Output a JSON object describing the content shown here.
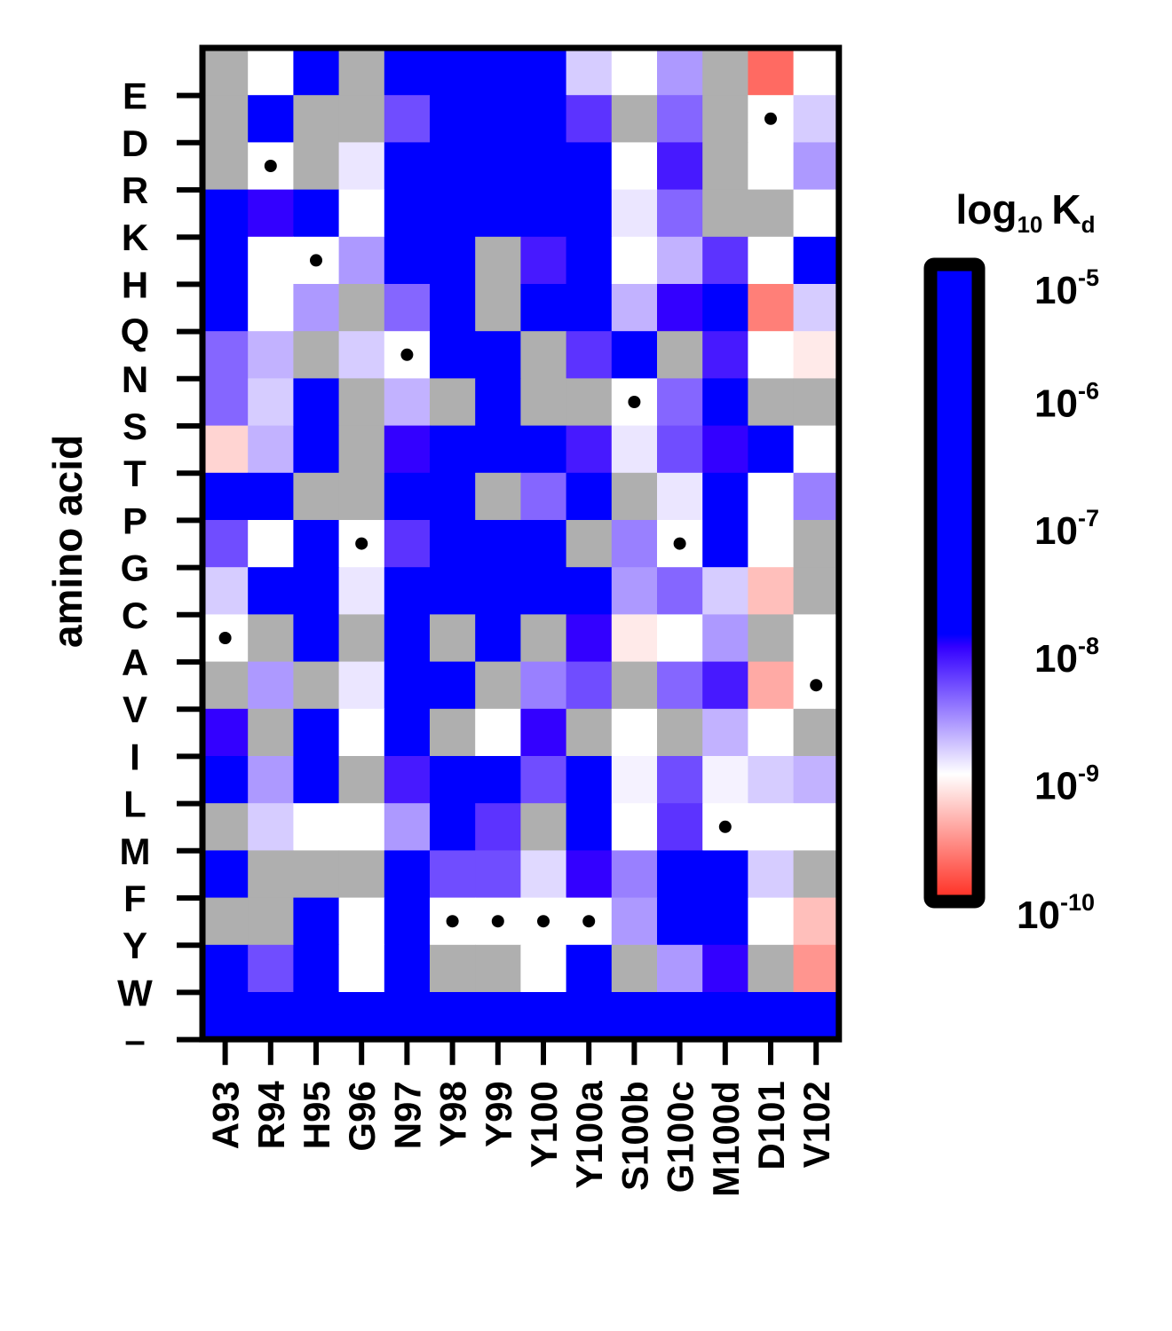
{
  "chart_data": {
    "type": "heatmap",
    "title": "",
    "xlabel": "",
    "ylabel": "amino acid",
    "x_categories": [
      "A93",
      "R94",
      "H95",
      "G96",
      "N97",
      "Y98",
      "Y99",
      "Y100",
      "Y100a",
      "S100b",
      "G100c",
      "M100d",
      "D101",
      "V102"
    ],
    "y_categories": [
      "E",
      "D",
      "R",
      "K",
      "H",
      "Q",
      "N",
      "S",
      "T",
      "P",
      "G",
      "C",
      "A",
      "V",
      "I",
      "L",
      "M",
      "F",
      "Y",
      "W",
      "–"
    ],
    "value_scale": "log10",
    "value_units": "log10 Kd",
    "missing_value_color": "#afafaf",
    "values": [
      [
        null,
        -9,
        -7.9,
        null,
        -7.9,
        -5,
        -5,
        -5,
        -8.8,
        -9,
        -8.6,
        null,
        -9.7,
        -9
      ],
      [
        null,
        -7.8,
        null,
        null,
        -8.3,
        -5,
        -5,
        -5,
        -8.2,
        null,
        -8.4,
        null,
        -9,
        -8.8
      ],
      [
        null,
        -9,
        null,
        -8.9,
        -7.2,
        -5,
        -5,
        -5,
        -7.8,
        -9,
        -8.1,
        null,
        -9,
        -8.6
      ],
      [
        -5,
        -8,
        -5,
        -9,
        -5,
        -5,
        -5,
        -5,
        -7.8,
        -8.9,
        -8.4,
        null,
        null,
        -9
      ],
      [
        -5,
        -9,
        -9,
        -8.6,
        -7.6,
        -5,
        null,
        -8.1,
        -7.8,
        -9,
        -8.7,
        -8.2,
        -9,
        -5
      ],
      [
        -5,
        -9,
        -8.6,
        null,
        -8.4,
        -5,
        null,
        -5,
        -7.9,
        -8.7,
        -8,
        -5,
        -9.6,
        -8.8
      ],
      [
        -8.4,
        -8.7,
        null,
        -8.8,
        -9,
        -5,
        -5,
        null,
        -8.2,
        -7.9,
        null,
        -8.1,
        -9,
        -9.1
      ],
      [
        -8.4,
        -8.8,
        -5,
        null,
        -8.7,
        null,
        -5,
        null,
        null,
        -9,
        -8.4,
        -5,
        null,
        null
      ],
      [
        -9.2,
        -8.7,
        -5,
        null,
        -8,
        -5,
        -5,
        -7.6,
        -8.1,
        -8.9,
        -8.3,
        -8,
        -5,
        -9
      ],
      [
        -7.3,
        -7.4,
        null,
        null,
        -5,
        -5,
        null,
        -8.4,
        -5,
        null,
        -8.9,
        -7.3,
        -9,
        -8.5
      ],
      [
        -8.3,
        -9,
        -7.9,
        -9,
        -8.2,
        -5,
        -5,
        -5,
        null,
        -8.5,
        -9,
        -5,
        -9,
        null
      ],
      [
        -8.8,
        -7.8,
        -5,
        -8.9,
        -5,
        -5,
        -5,
        -7.6,
        -5,
        -8.6,
        -8.4,
        -8.8,
        -9.3,
        null
      ],
      [
        -9,
        null,
        -5,
        null,
        -7.8,
        null,
        -5,
        null,
        -8,
        -9.1,
        -9,
        -8.6,
        null,
        -9
      ],
      [
        null,
        -8.6,
        null,
        -8.9,
        -5,
        -5,
        null,
        -8.5,
        -8.3,
        null,
        -8.4,
        -8.1,
        -9.4,
        -9
      ],
      [
        -8,
        null,
        -5,
        -9,
        -5,
        null,
        -9,
        -8,
        null,
        -9,
        null,
        -8.7,
        -9,
        null
      ],
      [
        -5,
        -8.6,
        -5,
        null,
        -8.1,
        -5,
        -7.6,
        -8.3,
        -7.4,
        -8.95,
        -8.3,
        -8.95,
        -8.8,
        -8.7
      ],
      [
        null,
        -8.8,
        -9,
        -9,
        -8.6,
        -5,
        -8.2,
        null,
        -5,
        -9,
        -8.2,
        -9,
        -9,
        -9
      ],
      [
        -5,
        null,
        null,
        null,
        -5,
        -8.3,
        -8.3,
        -8.85,
        -8,
        -8.5,
        -7.8,
        -7.9,
        -8.8,
        null
      ],
      [
        null,
        null,
        -7.9,
        -9,
        -5,
        -9,
        -9,
        -9,
        -9,
        -8.6,
        -7.9,
        -7.8,
        -9,
        -9.3
      ],
      [
        -5,
        -8.3,
        -5,
        -9,
        -5,
        null,
        null,
        -9,
        -5,
        null,
        -8.6,
        -8,
        null,
        -9.5
      ],
      [
        -5,
        -5,
        -5,
        -5,
        -5,
        -5,
        -5,
        -5,
        -5,
        -5,
        -5,
        -5,
        -5,
        -5
      ]
    ],
    "markers": [
      {
        "row": "D",
        "col": "D101"
      },
      {
        "row": "R",
        "col": "R94"
      },
      {
        "row": "H",
        "col": "H95"
      },
      {
        "row": "N",
        "col": "N97"
      },
      {
        "row": "S",
        "col": "S100b"
      },
      {
        "row": "G",
        "col": "G96"
      },
      {
        "row": "G",
        "col": "G100c"
      },
      {
        "row": "A",
        "col": "A93"
      },
      {
        "row": "V",
        "col": "V102"
      },
      {
        "row": "M",
        "col": "M100d"
      },
      {
        "row": "Y",
        "col": "Y98"
      },
      {
        "row": "Y",
        "col": "Y99"
      },
      {
        "row": "Y",
        "col": "Y100"
      },
      {
        "row": "Y",
        "col": "Y100a"
      }
    ],
    "colorbar": {
      "title_main": "log",
      "title_sub": "10",
      "title_var": "K",
      "title_var_sub": "d",
      "range": [
        -10,
        -5
      ],
      "ticks": [
        {
          "value": -5,
          "base": "10",
          "exp": "-5"
        },
        {
          "value": -6,
          "base": "10",
          "exp": "-6"
        },
        {
          "value": -7,
          "base": "10",
          "exp": "-7"
        },
        {
          "value": -8,
          "base": "10",
          "exp": "-8"
        },
        {
          "value": -9,
          "base": "10",
          "exp": "-9"
        },
        {
          "value": -10,
          "base": "10",
          "exp": "-10"
        }
      ],
      "color_stops": [
        {
          "value": -10,
          "color": "#ff2a1e"
        },
        {
          "value": -9,
          "color": "#ffffff"
        },
        {
          "value": -8,
          "color": "#3300ff"
        },
        {
          "value": -7.9,
          "color": "#0000ff"
        },
        {
          "value": -5,
          "color": "#0000ff"
        }
      ]
    },
    "grid": false
  }
}
